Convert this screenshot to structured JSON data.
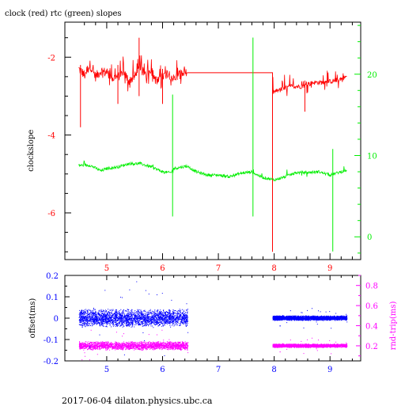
{
  "header": {
    "title": "clock (red) rtc (green) slopes"
  },
  "footer": {
    "text": "2017-06-04 dilaton.physics.ubc.ca"
  },
  "colors": {
    "red": "#ff0000",
    "green": "#00ee00",
    "blue": "#0000ff",
    "magenta": "#ff00ff"
  },
  "chart_data": [
    {
      "type": "line",
      "title": "clock (red) rtc (green) slopes",
      "xlabel": "",
      "ylabel": "clockslope",
      "y2label": "",
      "xlim": [
        4.25,
        9.55
      ],
      "ylim": [
        -7.2,
        -1.1
      ],
      "y2lim": [
        -2.8,
        26.4
      ],
      "x_ticks": [
        "5",
        "6",
        "7",
        "8",
        "9"
      ],
      "y_ticks": [
        "-2",
        "-4",
        "-6"
      ],
      "y2_ticks": [
        "0",
        "10",
        "20"
      ],
      "grid": false,
      "series": [
        {
          "axis": "left",
          "color": "#ff0000",
          "points": [
            [
              4.5,
              -2.3
            ],
            [
              4.6,
              -2.45
            ],
            [
              4.7,
              -2.2
            ],
            [
              4.8,
              -2.5
            ],
            [
              4.9,
              -2.35
            ],
            [
              5.0,
              -2.4
            ],
            [
              5.1,
              -2.55
            ],
            [
              5.2,
              -2.5
            ],
            [
              5.3,
              -2.4
            ],
            [
              5.4,
              -2.6
            ],
            [
              5.5,
              -2.5
            ],
            [
              5.6,
              -2.3
            ],
            [
              5.7,
              -2.45
            ],
            [
              5.8,
              -2.35
            ],
            [
              5.9,
              -2.65
            ],
            [
              6.0,
              -2.5
            ],
            [
              6.1,
              -2.4
            ],
            [
              6.2,
              -2.55
            ],
            [
              6.3,
              -2.45
            ],
            [
              6.44,
              -2.4
            ],
            [
              7.97,
              -2.4
            ],
            [
              7.97,
              -7.0
            ],
            [
              7.97,
              -2.9
            ],
            [
              8.1,
              -2.85
            ],
            [
              8.3,
              -2.75
            ],
            [
              8.5,
              -2.75
            ],
            [
              8.7,
              -2.65
            ],
            [
              8.9,
              -2.65
            ],
            [
              9.1,
              -2.6
            ],
            [
              9.3,
              -2.5
            ]
          ]
        },
        {
          "axis": "right",
          "color": "#00ee00",
          "points": [
            [
              4.5,
              8.8
            ],
            [
              4.7,
              8.8
            ],
            [
              4.9,
              8.1
            ],
            [
              5.0,
              8.4
            ],
            [
              5.2,
              8.6
            ],
            [
              5.4,
              9.0
            ],
            [
              5.6,
              9.0
            ],
            [
              5.8,
              8.6
            ],
            [
              6.0,
              8.0
            ],
            [
              6.1,
              7.9
            ],
            [
              6.15,
              7.9
            ],
            [
              6.2,
              8.4
            ],
            [
              6.44,
              8.7
            ],
            [
              6.6,
              8.0
            ],
            [
              6.8,
              7.6
            ],
            [
              7.0,
              7.6
            ],
            [
              7.2,
              7.4
            ],
            [
              7.4,
              7.8
            ],
            [
              7.6,
              8.0
            ],
            [
              7.7,
              7.6
            ],
            [
              7.8,
              7.3
            ],
            [
              8.0,
              7.0
            ],
            [
              8.2,
              7.4
            ],
            [
              8.4,
              7.9
            ],
            [
              8.6,
              7.9
            ],
            [
              8.8,
              8.0
            ],
            [
              9.0,
              7.6
            ],
            [
              9.2,
              8.0
            ],
            [
              9.3,
              8.2
            ]
          ]
        }
      ],
      "spikes": [
        {
          "series": "green",
          "x": 6.18,
          "low": 2.5,
          "high": 17.5
        },
        {
          "series": "green",
          "x": 7.62,
          "low": 2.5,
          "high": 24.5
        },
        {
          "series": "green",
          "x": 9.05,
          "low": -1.8,
          "high": 10.8
        },
        {
          "series": "red",
          "x": 4.53,
          "low": -3.8,
          "high": -2.2
        },
        {
          "series": "red",
          "x": 5.2,
          "low": -3.2,
          "high": -2.2
        },
        {
          "series": "red",
          "x": 5.58,
          "low": -3.0,
          "high": -1.5
        },
        {
          "series": "red",
          "x": 6.0,
          "low": -3.2,
          "high": -2.3
        },
        {
          "series": "red",
          "x": 8.55,
          "low": -3.4,
          "high": -2.6
        }
      ]
    },
    {
      "type": "scatter",
      "title": "",
      "xlabel": "",
      "ylabel": "offset(ms)",
      "y2label": "rnd-trip(ms)",
      "xlim": [
        4.25,
        9.55
      ],
      "ylim": [
        -0.2,
        0.2
      ],
      "y2lim": [
        0.05,
        0.9
      ],
      "x_ticks": [
        "5",
        "6",
        "7",
        "8",
        "9"
      ],
      "y_ticks": [
        "0.2",
        "0.1",
        "0",
        "-0.1",
        "-0.2"
      ],
      "y2_ticks": [
        "0.8",
        "0.6",
        "0.4",
        "0.2"
      ],
      "grid": false,
      "series": [
        {
          "axis": "left",
          "color": "#0000ff",
          "segments": [
            [
              4.5,
              6.45,
              0.0,
              0.045
            ],
            [
              7.97,
              9.3,
              0.0,
              0.012
            ]
          ]
        },
        {
          "axis": "right",
          "color": "#ff00ff",
          "segments": [
            [
              4.5,
              6.45,
              0.2,
              0.045
            ],
            [
              7.97,
              9.3,
              0.2,
              0.02
            ]
          ]
        }
      ]
    }
  ]
}
